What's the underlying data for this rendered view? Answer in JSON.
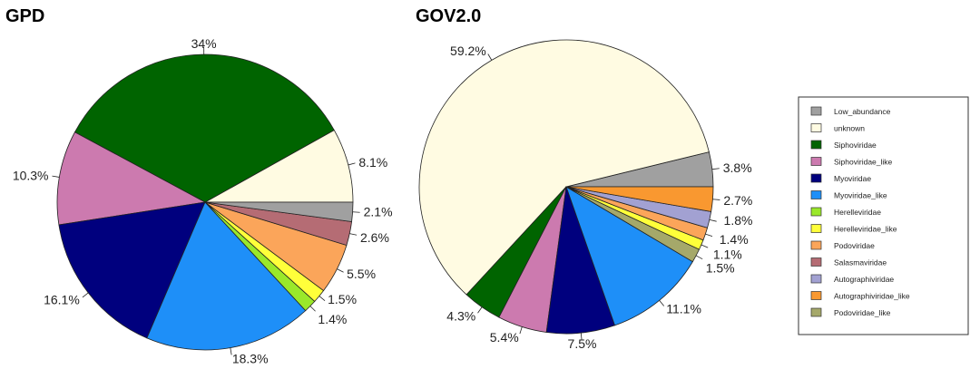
{
  "categories": [
    {
      "name": "Low_abundance",
      "color": "#a0a0a0"
    },
    {
      "name": "unknown",
      "color": "#fffbe2"
    },
    {
      "name": "Siphoviridae",
      "color": "#006400"
    },
    {
      "name": "Siphoviridae_like",
      "color": "#cc7aaf"
    },
    {
      "name": "Myoviridae",
      "color": "#00007e"
    },
    {
      "name": "Myoviridae_like",
      "color": "#1e8ff8"
    },
    {
      "name": "Herelleviridae",
      "color": "#9ae82a"
    },
    {
      "name": "Herelleviridae_like",
      "color": "#ffff3a"
    },
    {
      "name": "Podoviridae",
      "color": "#fba55a"
    },
    {
      "name": "Salasmaviridae",
      "color": "#b56c74"
    },
    {
      "name": "Autographiviridae",
      "color": "#a2a1d2"
    },
    {
      "name": "Autographiviridae_like",
      "color": "#f99830"
    },
    {
      "name": "Podoviridae_like",
      "color": "#a5a86a"
    }
  ],
  "chart_data": [
    {
      "type": "pie",
      "title": "GPD",
      "start_angle_deg": 0,
      "direction": "counterclockwise",
      "slices": [
        {
          "category": "unknown",
          "value": 8.1,
          "label": "8.1%"
        },
        {
          "category": "Siphoviridae",
          "value": 34.0,
          "label": "34%"
        },
        {
          "category": "Siphoviridae_like",
          "value": 10.3,
          "label": "10.3%"
        },
        {
          "category": "Myoviridae",
          "value": 16.1,
          "label": "16.1%"
        },
        {
          "category": "Myoviridae_like",
          "value": 18.3,
          "label": "18.3%"
        },
        {
          "category": "Herelleviridae",
          "value": 1.4,
          "label": "1.4%"
        },
        {
          "category": "Herelleviridae_like",
          "value": 1.5,
          "label": "1.5%"
        },
        {
          "category": "Podoviridae",
          "value": 5.5,
          "label": "5.5%"
        },
        {
          "category": "Salasmaviridae",
          "value": 2.6,
          "label": "2.6%"
        },
        {
          "category": "Low_abundance",
          "value": 2.1,
          "label": "2.1%"
        }
      ]
    },
    {
      "type": "pie",
      "title": "GOV2.0",
      "start_angle_deg": 0,
      "direction": "counterclockwise",
      "slices": [
        {
          "category": "Low_abundance",
          "value": 3.8,
          "label": "3.8%"
        },
        {
          "category": "unknown",
          "value": 59.2,
          "label": "59.2%"
        },
        {
          "category": "Siphoviridae",
          "value": 4.3,
          "label": "4.3%"
        },
        {
          "category": "Siphoviridae_like",
          "value": 5.4,
          "label": "5.4%"
        },
        {
          "category": "Myoviridae",
          "value": 7.5,
          "label": "7.5%"
        },
        {
          "category": "Myoviridae_like",
          "value": 11.1,
          "label": "11.1%"
        },
        {
          "category": "Podoviridae_like",
          "value": 1.5,
          "label": "1.5%"
        },
        {
          "category": "Herelleviridae_like",
          "value": 1.1,
          "label": "1.1%"
        },
        {
          "category": "Podoviridae",
          "value": 1.4,
          "label": "1.4%"
        },
        {
          "category": "Autographiviridae",
          "value": 1.8,
          "label": "1.8%"
        },
        {
          "category": "Autographiviridae_like",
          "value": 2.7,
          "label": "2.7%"
        }
      ]
    }
  ]
}
